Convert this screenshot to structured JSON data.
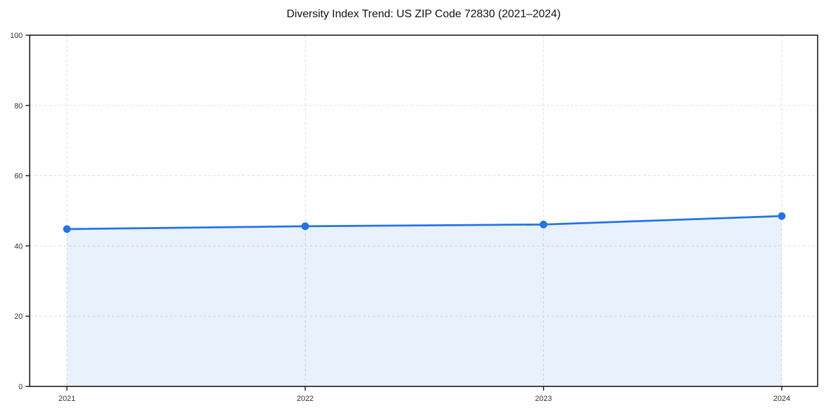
{
  "page": {
    "background": "#ffffff"
  },
  "chart_data": {
    "type": "area",
    "title": "Diversity Index Trend: US ZIP Code 72830 (2021–2024)",
    "x": [
      "2021",
      "2022",
      "2023",
      "2024"
    ],
    "series": [
      {
        "name": "Diversity Index",
        "values": [
          44.8,
          45.6,
          46.1,
          48.5
        ]
      }
    ],
    "ylim": [
      0,
      100
    ],
    "yticks": [
      0,
      20,
      40,
      60,
      80,
      100
    ],
    "xlabel": "",
    "ylabel": "",
    "grid": true,
    "grid_style": "dashed",
    "legend": false,
    "colors": {
      "line": "#2273e6",
      "marker": "#2273e6",
      "fill": "rgba(34, 115, 230, 0.10)",
      "grid": "#e2e2e2",
      "axis": "#1a1a1a",
      "tick_text": "#333333",
      "title_text": "#111111"
    }
  }
}
